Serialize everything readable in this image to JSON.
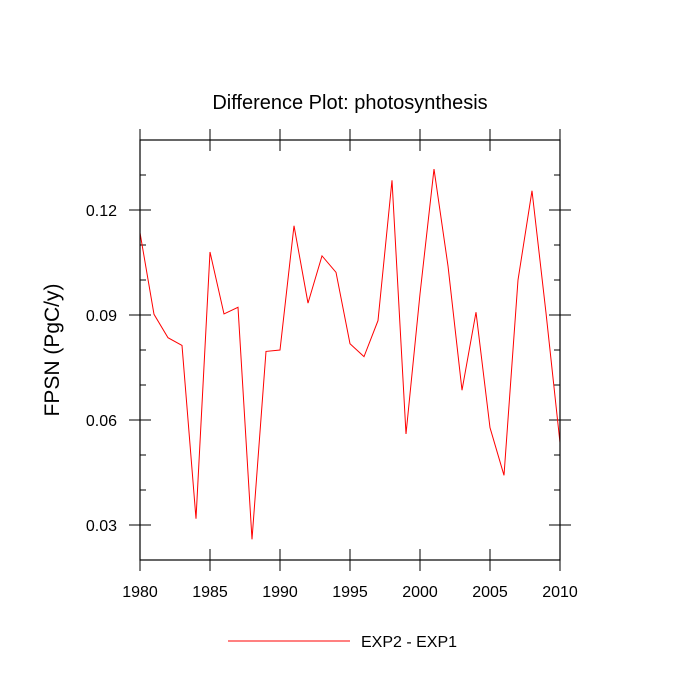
{
  "chart_data": {
    "type": "line",
    "title": "Difference Plot: photosynthesis",
    "xlabel": "",
    "ylabel": "FPSN  (PgC/y)",
    "xlim": [
      1980,
      2010
    ],
    "ylim": [
      0.02,
      0.14
    ],
    "x_ticks": [
      1980,
      1985,
      1990,
      1995,
      2000,
      2005,
      2010
    ],
    "x_tick_labels": [
      "1980",
      "1985",
      "1990",
      "1995",
      "2000",
      "2005",
      "2010"
    ],
    "y_ticks": [
      0.03,
      0.06,
      0.09,
      0.12
    ],
    "y_tick_labels": [
      "0.03",
      "0.06",
      "0.09",
      "0.12"
    ],
    "grid": false,
    "legend_position": "bottom-center",
    "series": [
      {
        "name": "EXP2 - EXP1",
        "color": "#ff0000",
        "x": [
          1980,
          1981,
          1982,
          1983,
          1984,
          1985,
          1986,
          1987,
          1988,
          1989,
          1990,
          1991,
          1992,
          1993,
          1994,
          1995,
          1996,
          1997,
          1998,
          1999,
          2000,
          2001,
          2002,
          2003,
          2004,
          2005,
          2006,
          2007,
          2008,
          2009,
          2010
        ],
        "values": [
          0.1135,
          0.0902,
          0.0835,
          0.0813,
          0.0318,
          0.108,
          0.0903,
          0.0922,
          0.0259,
          0.0796,
          0.08,
          0.1155,
          0.0934,
          0.1069,
          0.1022,
          0.0818,
          0.0781,
          0.0884,
          0.1285,
          0.056,
          0.096,
          0.1317,
          0.104,
          0.0685,
          0.0908,
          0.0578,
          0.0442,
          0.1,
          0.1255,
          0.0906,
          0.0535
        ]
      }
    ]
  }
}
